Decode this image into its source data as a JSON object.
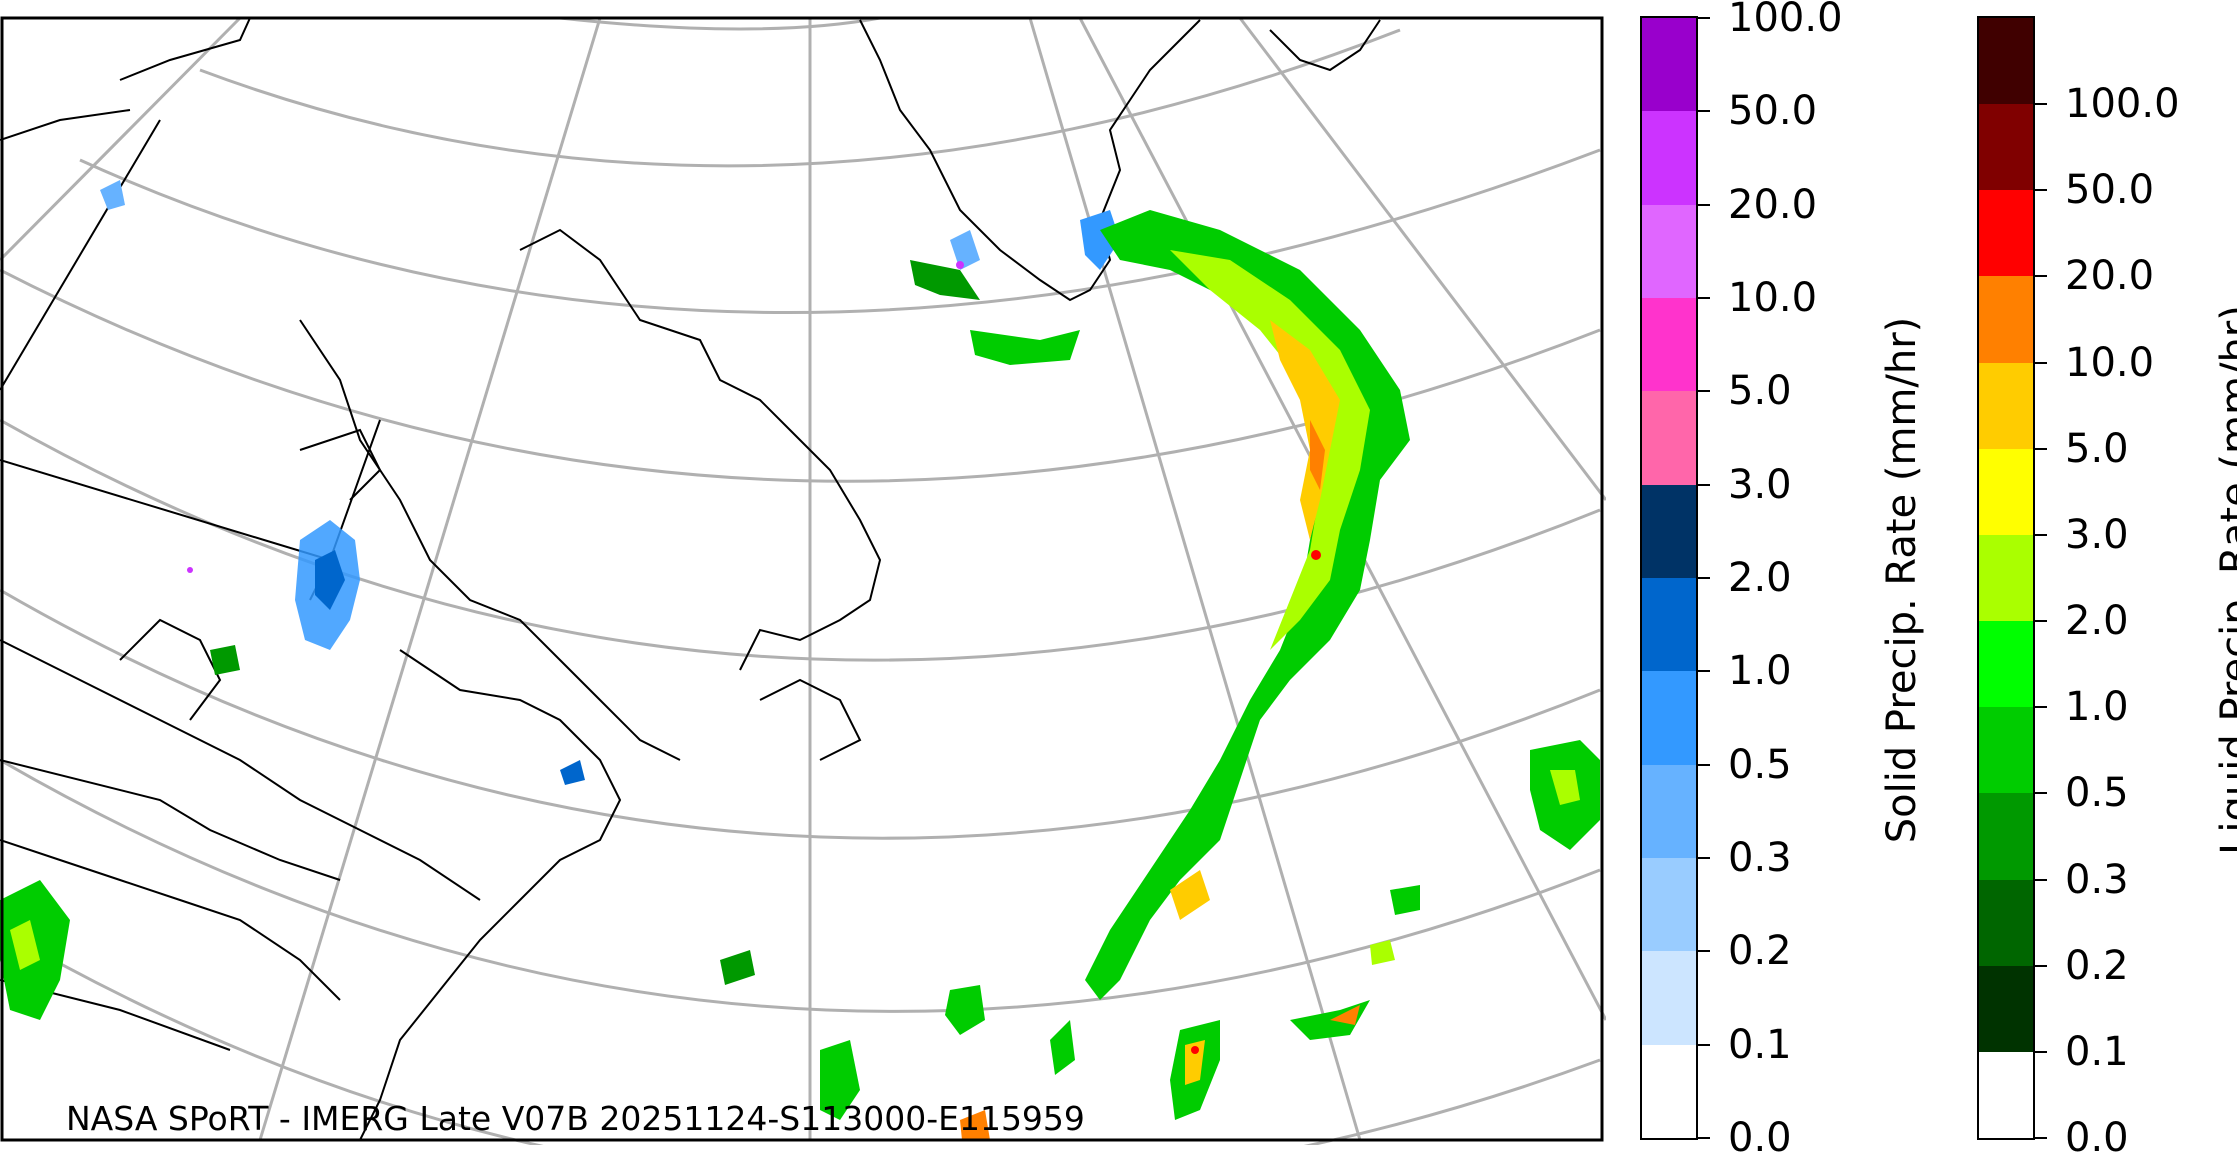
{
  "map": {
    "credit": "NASA SPoRT - IMERG Late V07B 20251124-S113000-E115959",
    "region": "Northeastern North America, Greenland and North Atlantic"
  },
  "legends": {
    "solid": {
      "title": "Solid Precip. Rate (mm/hr)",
      "ticks": [
        "0.0",
        "0.1",
        "0.2",
        "0.3",
        "0.5",
        "1.0",
        "2.0",
        "3.0",
        "5.0",
        "10.0",
        "20.0",
        "50.0",
        "100.0"
      ],
      "colors": [
        "#ffffff",
        "#cce5ff",
        "#99ccff",
        "#66b2ff",
        "#3399ff",
        "#0066cc",
        "#003366",
        "#ff66aa",
        "#ff33cc",
        "#e066ff",
        "#cc33ff",
        "#9900cc"
      ]
    },
    "liquid": {
      "title": "Liquid Precip. Rate (mm/hr)",
      "ticks": [
        "0.0",
        "0.1",
        "0.2",
        "0.3",
        "0.5",
        "1.0",
        "2.0",
        "3.0",
        "5.0",
        "10.0",
        "20.0",
        "50.0",
        "100.0"
      ],
      "colors": [
        "#ffffff",
        "#003300",
        "#006600",
        "#009900",
        "#00cc00",
        "#00ff00",
        "#aaff00",
        "#ffff00",
        "#ffcc00",
        "#ff8000",
        "#ff0000",
        "#800000",
        "#400000"
      ]
    }
  }
}
